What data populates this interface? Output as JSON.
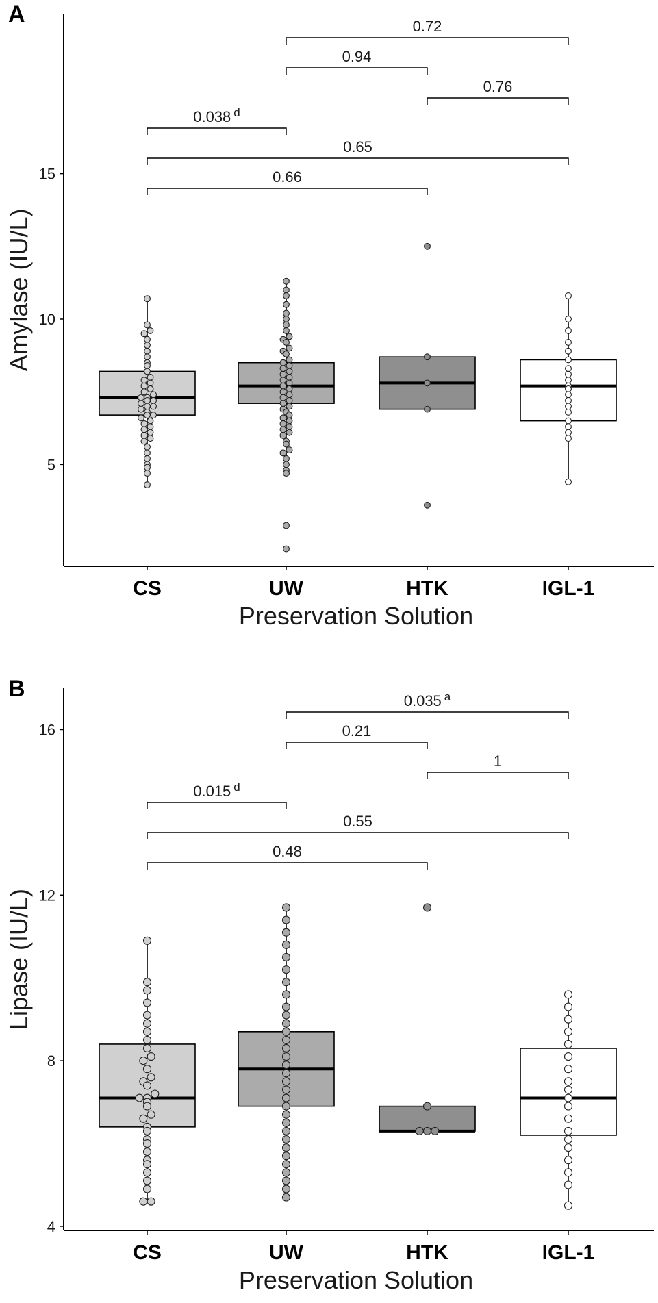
{
  "chart_data": [
    {
      "panel": "A",
      "type": "box",
      "ylabel": "Amylase (IU/L)",
      "xlabel": "Preservation Solution",
      "ylim": [
        1.5,
        20.5
      ],
      "yticks": [
        "5",
        "10",
        "15"
      ],
      "categories": [
        "CS",
        "UW",
        "HTK",
        "IGL-1"
      ],
      "fill_colors": [
        "#d0d0d0",
        "#ababab",
        "#8f8f8f",
        "#ffffff"
      ],
      "boxes": [
        {
          "category": "CS",
          "q1": 6.7,
          "median": 7.3,
          "q3": 8.2,
          "whisker_low": 4.3,
          "whisker_high": 10.7
        },
        {
          "category": "UW",
          "q1": 7.1,
          "median": 7.7,
          "q3": 8.5,
          "whisker_low": 4.8,
          "whisker_high": 11.3
        },
        {
          "category": "HTK",
          "q1": 6.9,
          "median": 7.8,
          "q3": 8.7,
          "whisker_low": 6.9,
          "whisker_high": 8.7
        },
        {
          "category": "IGL-1",
          "q1": 6.5,
          "median": 7.7,
          "q3": 8.6,
          "whisker_low": 4.4,
          "whisker_high": 10.8
        }
      ],
      "points": {
        "CS": [
          4.3,
          4.7,
          4.9,
          5.0,
          5.2,
          5.4,
          5.6,
          5.8,
          5.9,
          6.0,
          6.1,
          6.2,
          6.3,
          6.4,
          6.5,
          6.6,
          6.7,
          6.7,
          6.8,
          6.9,
          7.0,
          7.0,
          7.1,
          7.2,
          7.2,
          7.3,
          7.3,
          7.4,
          7.5,
          7.6,
          7.7,
          7.8,
          7.9,
          8.0,
          8.2,
          8.4,
          8.5,
          8.7,
          8.9,
          9.1,
          9.3,
          9.5,
          9.6,
          9.8,
          10.7
        ],
        "UW": [
          2.1,
          2.9,
          4.7,
          4.8,
          5.0,
          5.2,
          5.4,
          5.5,
          5.7,
          5.8,
          6.0,
          6.1,
          6.2,
          6.3,
          6.4,
          6.5,
          6.6,
          6.7,
          6.8,
          6.9,
          7.0,
          7.1,
          7.2,
          7.3,
          7.4,
          7.5,
          7.6,
          7.7,
          7.8,
          7.9,
          8.0,
          8.1,
          8.2,
          8.3,
          8.4,
          8.5,
          8.6,
          8.8,
          8.9,
          9.0,
          9.2,
          9.3,
          9.4,
          9.6,
          9.8,
          10.0,
          10.2,
          10.5,
          10.8,
          11.0,
          11.3
        ],
        "HTK": [
          3.6,
          6.9,
          7.8,
          8.7,
          12.5
        ],
        "IGL-1": [
          4.4,
          5.9,
          6.1,
          6.3,
          6.5,
          6.8,
          7.0,
          7.2,
          7.4,
          7.6,
          7.7,
          7.9,
          8.1,
          8.3,
          8.6,
          8.9,
          9.2,
          9.6,
          10.0,
          10.8
        ]
      },
      "comparisons": [
        {
          "from": "CS",
          "to": "HTK",
          "label": "0.66",
          "sup": ""
        },
        {
          "from": "CS",
          "to": "IGL-1",
          "label": "0.65",
          "sup": ""
        },
        {
          "from": "CS",
          "to": "UW",
          "label": "0.038",
          "sup": "d"
        },
        {
          "from": "HTK",
          "to": "IGL-1",
          "label": "0.76",
          "sup": ""
        },
        {
          "from": "UW",
          "to": "HTK",
          "label": "0.94",
          "sup": ""
        },
        {
          "from": "UW",
          "to": "IGL-1",
          "label": "0.72",
          "sup": ""
        }
      ]
    },
    {
      "panel": "B",
      "type": "box",
      "ylabel": "Lipase (IU/L)",
      "xlabel": "Preservation Solution",
      "ylim": [
        3.9,
        17.0
      ],
      "yticks": [
        "4",
        "8",
        "12",
        "16"
      ],
      "categories": [
        "CS",
        "UW",
        "HTK",
        "IGL-1"
      ],
      "fill_colors": [
        "#d0d0d0",
        "#ababab",
        "#8f8f8f",
        "#ffffff"
      ],
      "boxes": [
        {
          "category": "CS",
          "q1": 6.4,
          "median": 7.1,
          "q3": 8.4,
          "whisker_low": 4.6,
          "whisker_high": 10.9
        },
        {
          "category": "UW",
          "q1": 6.9,
          "median": 7.8,
          "q3": 8.7,
          "whisker_low": 4.7,
          "whisker_high": 11.7
        },
        {
          "category": "HTK",
          "q1": 6.3,
          "median": 6.3,
          "q3": 6.9,
          "whisker_low": 6.3,
          "whisker_high": 6.9
        },
        {
          "category": "IGL-1",
          "q1": 6.2,
          "median": 7.1,
          "q3": 8.3,
          "whisker_low": 4.5,
          "whisker_high": 9.6
        }
      ],
      "points": {
        "CS": [
          4.6,
          4.6,
          4.9,
          5.1,
          5.3,
          5.5,
          5.6,
          5.8,
          6.0,
          6.1,
          6.3,
          6.4,
          6.6,
          6.7,
          6.9,
          7.0,
          7.1,
          7.1,
          7.2,
          7.4,
          7.5,
          7.6,
          7.8,
          8.0,
          8.1,
          8.3,
          8.5,
          8.7,
          8.9,
          9.1,
          9.4,
          9.7,
          9.9,
          10.9
        ],
        "UW": [
          4.7,
          4.9,
          5.1,
          5.3,
          5.5,
          5.7,
          5.9,
          6.1,
          6.3,
          6.5,
          6.7,
          6.9,
          7.1,
          7.3,
          7.5,
          7.7,
          7.9,
          8.1,
          8.3,
          8.5,
          8.7,
          8.9,
          9.1,
          9.3,
          9.6,
          9.9,
          10.2,
          10.5,
          10.8,
          11.1,
          11.4,
          11.7
        ],
        "HTK": [
          6.3,
          6.3,
          6.3,
          6.9,
          11.7
        ],
        "IGL-1": [
          4.5,
          5.0,
          5.3,
          5.6,
          5.9,
          6.1,
          6.3,
          6.6,
          6.9,
          7.1,
          7.3,
          7.5,
          7.8,
          8.1,
          8.4,
          8.7,
          9.0,
          9.3,
          9.6
        ]
      },
      "comparisons": [
        {
          "from": "CS",
          "to": "HTK",
          "label": "0.48",
          "sup": ""
        },
        {
          "from": "CS",
          "to": "IGL-1",
          "label": "0.55",
          "sup": ""
        },
        {
          "from": "CS",
          "to": "UW",
          "label": "0.015",
          "sup": "d"
        },
        {
          "from": "HTK",
          "to": "IGL-1",
          "label": "1",
          "sup": ""
        },
        {
          "from": "UW",
          "to": "HTK",
          "label": "0.21",
          "sup": ""
        },
        {
          "from": "UW",
          "to": "IGL-1",
          "label": "0.035",
          "sup": "a"
        }
      ]
    }
  ]
}
